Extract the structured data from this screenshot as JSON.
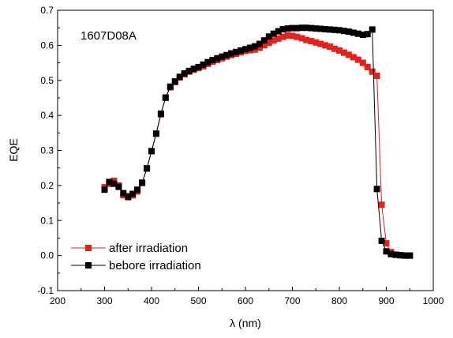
{
  "chart_data": {
    "type": "scatter",
    "xlabel": "λ (nm)",
    "ylabel": "EQE",
    "xlim": [
      200,
      1000
    ],
    "ylim": [
      -0.1,
      0.7
    ],
    "xticks": [
      "200",
      "300",
      "400",
      "500",
      "600",
      "700",
      "800",
      "900",
      "1000"
    ],
    "yticks": [
      "-0.1",
      "0.0",
      "0.1",
      "0.2",
      "0.3",
      "0.4",
      "0.5",
      "0.6",
      "0.7"
    ],
    "annotation": "1607D08A",
    "grid": false,
    "legend_position": "bottom-left",
    "x": [
      300,
      310,
      320,
      330,
      340,
      350,
      360,
      370,
      380,
      390,
      400,
      410,
      420,
      430,
      440,
      450,
      460,
      470,
      480,
      490,
      500,
      510,
      520,
      530,
      540,
      550,
      560,
      570,
      580,
      590,
      600,
      610,
      620,
      630,
      640,
      650,
      660,
      670,
      680,
      690,
      700,
      710,
      720,
      730,
      740,
      750,
      760,
      770,
      780,
      790,
      800,
      810,
      820,
      830,
      840,
      850,
      860,
      870,
      880,
      890,
      900,
      910,
      920,
      930,
      940,
      950
    ],
    "series": [
      {
        "name": "after irradiation",
        "color": "#e8201c",
        "values": [
          0.195,
          0.205,
          0.213,
          0.2,
          0.172,
          0.17,
          0.172,
          0.183,
          0.207,
          0.248,
          0.298,
          0.348,
          0.403,
          0.45,
          0.48,
          0.495,
          0.508,
          0.517,
          0.525,
          0.53,
          0.535,
          0.54,
          0.547,
          0.553,
          0.558,
          0.563,
          0.568,
          0.572,
          0.576,
          0.58,
          0.584,
          0.586,
          0.588,
          0.593,
          0.6,
          0.607,
          0.614,
          0.619,
          0.624,
          0.628,
          0.627,
          0.624,
          0.62,
          0.615,
          0.612,
          0.608,
          0.604,
          0.6,
          0.596,
          0.59,
          0.585,
          0.579,
          0.573,
          0.566,
          0.559,
          0.55,
          0.538,
          0.525,
          0.513,
          0.145,
          0.035,
          0.01,
          0.003,
          0.001,
          0.0,
          0.0
        ]
      },
      {
        "name": "bebore irradiation",
        "color": "#000000",
        "values": [
          0.188,
          0.21,
          0.205,
          0.196,
          0.178,
          0.167,
          0.176,
          0.188,
          0.208,
          0.249,
          0.298,
          0.348,
          0.405,
          0.451,
          0.482,
          0.497,
          0.51,
          0.52,
          0.527,
          0.533,
          0.538,
          0.545,
          0.552,
          0.558,
          0.563,
          0.568,
          0.572,
          0.577,
          0.581,
          0.585,
          0.589,
          0.593,
          0.597,
          0.604,
          0.614,
          0.625,
          0.633,
          0.64,
          0.646,
          0.648,
          0.649,
          0.649,
          0.65,
          0.65,
          0.649,
          0.648,
          0.647,
          0.646,
          0.645,
          0.644,
          0.643,
          0.641,
          0.639,
          0.636,
          0.633,
          0.63,
          0.632,
          0.645,
          0.19,
          0.042,
          0.012,
          0.004,
          0.002,
          0.001,
          0.0,
          0.0
        ]
      }
    ]
  }
}
